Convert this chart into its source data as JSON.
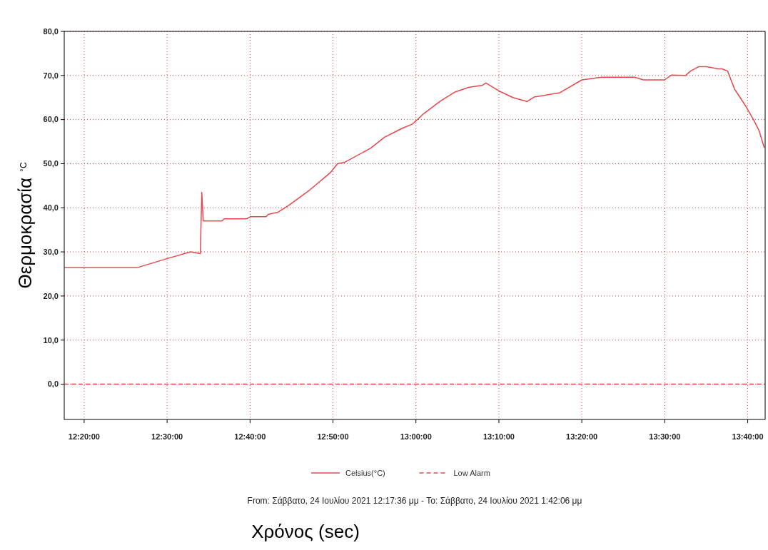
{
  "chart_data": {
    "type": "line",
    "ylabel": "Θερμοκρασία $^{°C}$",
    "xlabel": "Χρόνος (sec)",
    "annotations": [
      "From: Σάββατο, 24 Ιουλίου 2021 12:17:36 μμ  -  To: Σάββατο, 24 Ιουλίου 2021 1:42:06 μμ"
    ],
    "xlim": [
      12.2933,
      13.7017
    ],
    "ylim": [
      -8,
      80
    ],
    "xticks": [
      {
        "value": 12.3333,
        "label": "12:20:00"
      },
      {
        "value": 12.5,
        "label": "12:30:00"
      },
      {
        "value": 12.6667,
        "label": "12:40:00"
      },
      {
        "value": 12.8333,
        "label": "12:50:00"
      },
      {
        "value": 13.0,
        "label": "13:00:00"
      },
      {
        "value": 13.1667,
        "label": "13:10:00"
      },
      {
        "value": 13.3333,
        "label": "13:20:00"
      },
      {
        "value": 13.5,
        "label": "13:30:00"
      },
      {
        "value": 13.6667,
        "label": "13:40:00"
      }
    ],
    "yticks": [
      {
        "value": 0,
        "label": "0,0"
      },
      {
        "value": 10,
        "label": "10,0"
      },
      {
        "value": 20,
        "label": "20,0"
      },
      {
        "value": 30,
        "label": "30,0"
      },
      {
        "value": 40,
        "label": "40,0"
      },
      {
        "value": 50,
        "label": "50,0"
      },
      {
        "value": 60,
        "label": "60,0"
      },
      {
        "value": 70,
        "label": "70,0"
      },
      {
        "value": 80,
        "label": "80,0"
      }
    ],
    "grid": true,
    "legend": "bottom",
    "marker": "none",
    "series": [
      {
        "name": "Celsius(°C)",
        "color": "#e8474c",
        "line_style": "solid",
        "x": [
          12.294,
          12.4388,
          12.5007,
          12.5472,
          12.5668,
          12.5697,
          12.5725,
          12.6103,
          12.6147,
          12.6597,
          12.668,
          12.699,
          12.7032,
          12.723,
          12.744,
          12.7862,
          12.8283,
          12.8425,
          12.8565,
          12.9087,
          12.9368,
          12.972,
          12.9932,
          13.0142,
          13.0493,
          13.0775,
          13.1057,
          13.1338,
          13.1408,
          13.1668,
          13.195,
          13.2232,
          13.2372,
          13.2893,
          13.3335,
          13.373,
          13.4392,
          13.4573,
          13.4997,
          13.5137,
          13.5418,
          13.5517,
          13.5685,
          13.584,
          13.6078,
          13.615,
          13.6262,
          13.6403,
          13.6613,
          13.6782,
          13.6895,
          13.7
        ],
        "values": [
          26.4,
          26.4,
          28.5,
          30.0,
          29.6,
          43.5,
          37.0,
          37.0,
          37.5,
          37.5,
          38.0,
          38.0,
          38.5,
          39.0,
          40.5,
          44.0,
          48.0,
          50.0,
          50.3,
          53.5,
          56.0,
          58.0,
          59.0,
          61.2,
          64.2,
          66.2,
          67.3,
          67.8,
          68.3,
          66.5,
          65.0,
          64.1,
          65.1,
          66.1,
          69.0,
          69.6,
          69.6,
          69.0,
          69.0,
          70.1,
          70.0,
          71.0,
          72.0,
          72.0,
          71.5,
          71.5,
          71.0,
          66.9,
          63.3,
          60.0,
          57.5,
          53.6
        ]
      },
      {
        "name": "Low Alarm",
        "color": "#e8474c",
        "line_style": "dashed",
        "x": [
          12.2933,
          13.7017
        ],
        "values": [
          0,
          0
        ]
      }
    ]
  }
}
